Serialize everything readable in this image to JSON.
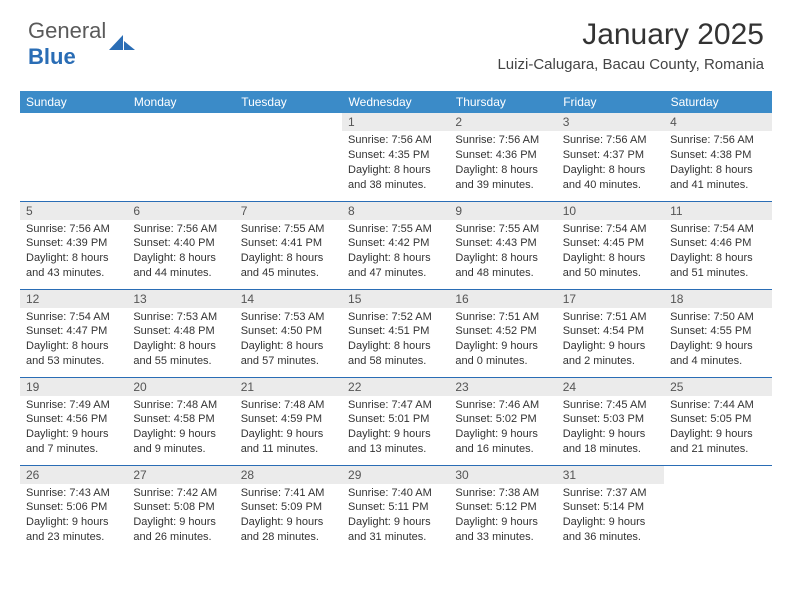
{
  "brand": {
    "name_a": "General",
    "name_b": "Blue"
  },
  "title": "January 2025",
  "location": "Luizi-Calugara, Bacau County, Romania",
  "colors": {
    "header_bg": "#3b8bc8",
    "header_text": "#ffffff",
    "daynum_bg": "#ebebeb",
    "week_border": "#2a6db5",
    "brand_gray": "#5a5a5a",
    "brand_blue": "#2a6db5"
  },
  "day_names": [
    "Sunday",
    "Monday",
    "Tuesday",
    "Wednesday",
    "Thursday",
    "Friday",
    "Saturday"
  ],
  "weeks": [
    [
      null,
      null,
      null,
      {
        "n": "1",
        "sr": "7:56 AM",
        "ss": "4:35 PM",
        "dl": "8 hours and 38 minutes."
      },
      {
        "n": "2",
        "sr": "7:56 AM",
        "ss": "4:36 PM",
        "dl": "8 hours and 39 minutes."
      },
      {
        "n": "3",
        "sr": "7:56 AM",
        "ss": "4:37 PM",
        "dl": "8 hours and 40 minutes."
      },
      {
        "n": "4",
        "sr": "7:56 AM",
        "ss": "4:38 PM",
        "dl": "8 hours and 41 minutes."
      }
    ],
    [
      {
        "n": "5",
        "sr": "7:56 AM",
        "ss": "4:39 PM",
        "dl": "8 hours and 43 minutes."
      },
      {
        "n": "6",
        "sr": "7:56 AM",
        "ss": "4:40 PM",
        "dl": "8 hours and 44 minutes."
      },
      {
        "n": "7",
        "sr": "7:55 AM",
        "ss": "4:41 PM",
        "dl": "8 hours and 45 minutes."
      },
      {
        "n": "8",
        "sr": "7:55 AM",
        "ss": "4:42 PM",
        "dl": "8 hours and 47 minutes."
      },
      {
        "n": "9",
        "sr": "7:55 AM",
        "ss": "4:43 PM",
        "dl": "8 hours and 48 minutes."
      },
      {
        "n": "10",
        "sr": "7:54 AM",
        "ss": "4:45 PM",
        "dl": "8 hours and 50 minutes."
      },
      {
        "n": "11",
        "sr": "7:54 AM",
        "ss": "4:46 PM",
        "dl": "8 hours and 51 minutes."
      }
    ],
    [
      {
        "n": "12",
        "sr": "7:54 AM",
        "ss": "4:47 PM",
        "dl": "8 hours and 53 minutes."
      },
      {
        "n": "13",
        "sr": "7:53 AM",
        "ss": "4:48 PM",
        "dl": "8 hours and 55 minutes."
      },
      {
        "n": "14",
        "sr": "7:53 AM",
        "ss": "4:50 PM",
        "dl": "8 hours and 57 minutes."
      },
      {
        "n": "15",
        "sr": "7:52 AM",
        "ss": "4:51 PM",
        "dl": "8 hours and 58 minutes."
      },
      {
        "n": "16",
        "sr": "7:51 AM",
        "ss": "4:52 PM",
        "dl": "9 hours and 0 minutes."
      },
      {
        "n": "17",
        "sr": "7:51 AM",
        "ss": "4:54 PM",
        "dl": "9 hours and 2 minutes."
      },
      {
        "n": "18",
        "sr": "7:50 AM",
        "ss": "4:55 PM",
        "dl": "9 hours and 4 minutes."
      }
    ],
    [
      {
        "n": "19",
        "sr": "7:49 AM",
        "ss": "4:56 PM",
        "dl": "9 hours and 7 minutes."
      },
      {
        "n": "20",
        "sr": "7:48 AM",
        "ss": "4:58 PM",
        "dl": "9 hours and 9 minutes."
      },
      {
        "n": "21",
        "sr": "7:48 AM",
        "ss": "4:59 PM",
        "dl": "9 hours and 11 minutes."
      },
      {
        "n": "22",
        "sr": "7:47 AM",
        "ss": "5:01 PM",
        "dl": "9 hours and 13 minutes."
      },
      {
        "n": "23",
        "sr": "7:46 AM",
        "ss": "5:02 PM",
        "dl": "9 hours and 16 minutes."
      },
      {
        "n": "24",
        "sr": "7:45 AM",
        "ss": "5:03 PM",
        "dl": "9 hours and 18 minutes."
      },
      {
        "n": "25",
        "sr": "7:44 AM",
        "ss": "5:05 PM",
        "dl": "9 hours and 21 minutes."
      }
    ],
    [
      {
        "n": "26",
        "sr": "7:43 AM",
        "ss": "5:06 PM",
        "dl": "9 hours and 23 minutes."
      },
      {
        "n": "27",
        "sr": "7:42 AM",
        "ss": "5:08 PM",
        "dl": "9 hours and 26 minutes."
      },
      {
        "n": "28",
        "sr": "7:41 AM",
        "ss": "5:09 PM",
        "dl": "9 hours and 28 minutes."
      },
      {
        "n": "29",
        "sr": "7:40 AM",
        "ss": "5:11 PM",
        "dl": "9 hours and 31 minutes."
      },
      {
        "n": "30",
        "sr": "7:38 AM",
        "ss": "5:12 PM",
        "dl": "9 hours and 33 minutes."
      },
      {
        "n": "31",
        "sr": "7:37 AM",
        "ss": "5:14 PM",
        "dl": "9 hours and 36 minutes."
      },
      null
    ]
  ]
}
